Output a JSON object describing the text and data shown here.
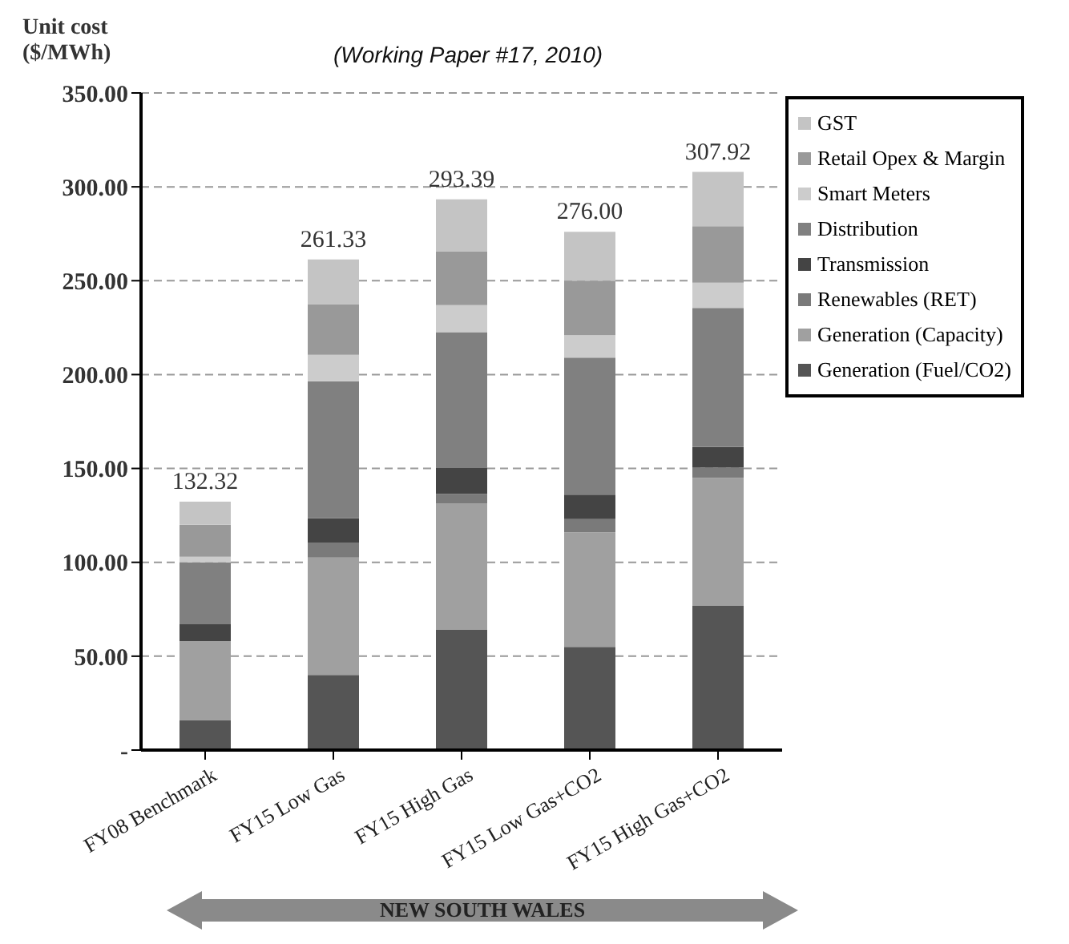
{
  "chart_data": {
    "type": "bar",
    "stacked": true,
    "ylabel": "Unit cost ($/MWh)",
    "annotations": [
      "(Working Paper #17, 2010)",
      "NEW SOUTH WALES"
    ],
    "categories": [
      "FY08 Benchmark",
      "FY15 Low Gas",
      "FY15 High Gas",
      "FY15 Low Gas+CO2",
      "FY15 High Gas+CO2"
    ],
    "series": [
      {
        "name": "Generation (Fuel/CO2)",
        "color": "#555555",
        "values": [
          16,
          40,
          64,
          55,
          77
        ]
      },
      {
        "name": "Generation (Capacity)",
        "color": "#a0a0a0",
        "values": [
          42,
          62.5,
          67.5,
          61,
          68
        ]
      },
      {
        "name": "Renewables (RET)",
        "color": "#7a7a7a",
        "values": [
          0,
          8,
          5,
          7,
          5.5
        ]
      },
      {
        "name": "Transmission",
        "color": "#444444",
        "values": [
          9,
          13,
          13.7,
          13,
          11
        ]
      },
      {
        "name": "Distribution",
        "color": "#808080",
        "values": [
          33,
          73,
          72.4,
          73,
          74
        ]
      },
      {
        "name": "Smart Meters",
        "color": "#cccccc",
        "values": [
          3,
          14,
          14.4,
          12,
          13.5
        ]
      },
      {
        "name": "Retail Opex & Margin",
        "color": "#999999",
        "values": [
          17,
          27,
          28.7,
          29,
          30
        ]
      },
      {
        "name": "GST",
        "color": "#c4c4c4",
        "values": [
          12.32,
          23.83,
          27.69,
          26,
          28.92
        ]
      }
    ],
    "totals": [
      "132.32",
      "261.33",
      "293.39",
      "276.00",
      "307.92"
    ],
    "ylim": [
      0,
      350
    ],
    "yticks": [
      {
        "value": 0,
        "label": "-"
      },
      {
        "value": 50,
        "label": "50.00"
      },
      {
        "value": 100,
        "label": "100.00"
      },
      {
        "value": 150,
        "label": "150.00"
      },
      {
        "value": 200,
        "label": "200.00"
      },
      {
        "value": 250,
        "label": "250.00"
      },
      {
        "value": 300,
        "label": "300.00"
      },
      {
        "value": 350,
        "label": "350.00"
      }
    ],
    "grid": "y",
    "legend": "top right"
  }
}
